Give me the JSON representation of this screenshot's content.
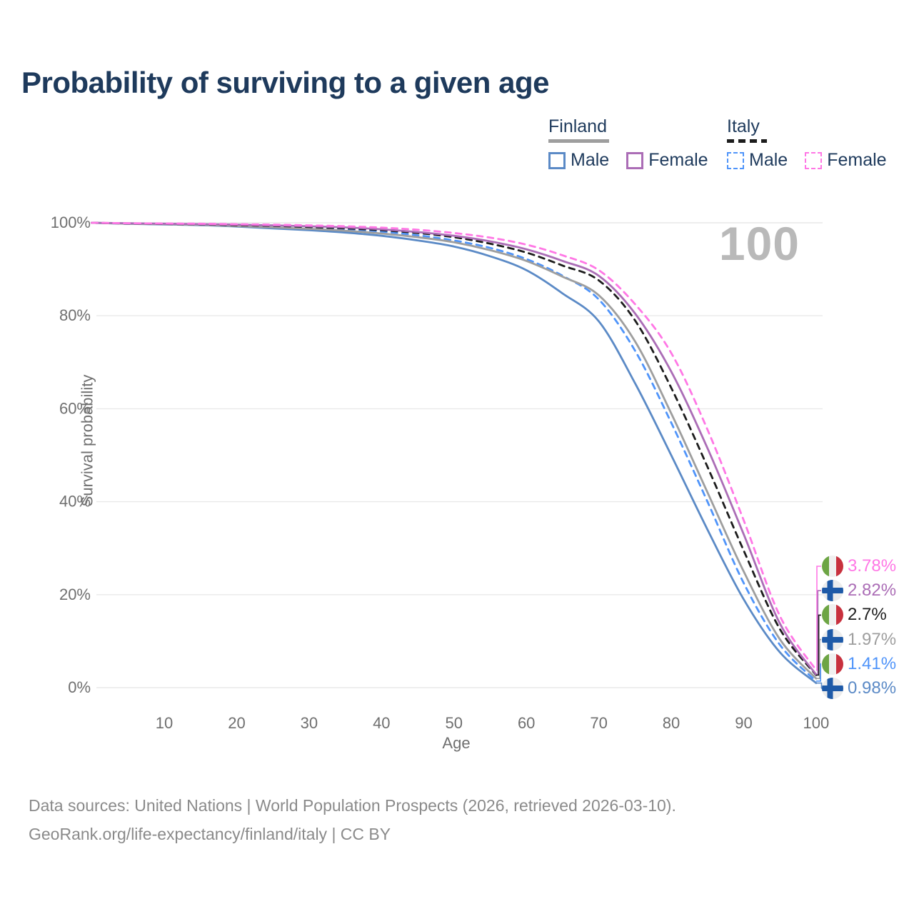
{
  "title": "Probability of surviving to a given age",
  "watermark": "100",
  "legend": {
    "finland": {
      "title": "Finland",
      "male": "Male",
      "female": "Female"
    },
    "italy": {
      "title": "Italy",
      "male": "Male",
      "female": "Female"
    }
  },
  "axes": {
    "y_label": "Survival probability",
    "x_label": "Age",
    "y_ticks": [
      {
        "value": 0,
        "label": "0%"
      },
      {
        "value": 20,
        "label": "20%"
      },
      {
        "value": 40,
        "label": "40%"
      },
      {
        "value": 60,
        "label": "60%"
      },
      {
        "value": 80,
        "label": "80%"
      },
      {
        "value": 100,
        "label": "100%"
      }
    ],
    "x_ticks": [
      10,
      20,
      30,
      40,
      50,
      60,
      70,
      80,
      90,
      100
    ]
  },
  "colors": {
    "title_text": "#1e3a5c",
    "axis_text": "#6f6f6f",
    "gridline": "#e9e9e9",
    "watermark": "#b9b9b9",
    "footer_text": "#8a8a8a",
    "finland_male": "#5b8ac6",
    "finland_female": "#ab6db6",
    "finland_total": "#9e9e9e",
    "italy_male": "#4f94fa",
    "italy_female": "#ff77e5",
    "italy_total": "#1c1c1c",
    "flag_italy_green": "#6da544",
    "flag_italy_red": "#c8313e",
    "flag_finland_blue": "#1e5aa8"
  },
  "chart_data": {
    "type": "line",
    "title": "Probability of surviving to a given age",
    "xlabel": "Age",
    "ylabel": "Survival probability",
    "xlim": [
      0,
      100
    ],
    "ylim": [
      0,
      100
    ],
    "grid": "horizontal",
    "legend_position": "top-right",
    "x": [
      0,
      5,
      10,
      15,
      20,
      25,
      30,
      35,
      40,
      45,
      50,
      55,
      60,
      65,
      70,
      75,
      80,
      85,
      90,
      95,
      100
    ],
    "series": [
      {
        "name": "Finland Male",
        "country": "finland",
        "sex": "male",
        "style": "solid",
        "color": "#5b8ac6",
        "end_label": "0.98%",
        "end_value": 0.98,
        "values": [
          100,
          99.8,
          99.65,
          99.5,
          99.2,
          98.8,
          98.4,
          97.9,
          97.2,
          96.2,
          94.9,
          92.8,
          89.8,
          84.8,
          78.8,
          65.5,
          50.0,
          34.0,
          19.0,
          7.6,
          0.98
        ]
      },
      {
        "name": "Italy Male",
        "country": "italy",
        "sex": "male",
        "style": "dashed",
        "color": "#4f94fa",
        "end_label": "1.41%",
        "end_value": 1.41,
        "values": [
          100,
          99.8,
          99.7,
          99.6,
          99.45,
          99.25,
          99.0,
          98.6,
          98.1,
          97.3,
          96.2,
          94.6,
          92.2,
          88.6,
          83.5,
          72.5,
          57.0,
          40.0,
          22.5,
          9.2,
          1.41
        ]
      },
      {
        "name": "Finland Total",
        "country": "finland",
        "sex": "total",
        "style": "solid",
        "color": "#9e9e9e",
        "end_label": "1.97%",
        "end_value": 1.97,
        "values": [
          100,
          99.8,
          99.7,
          99.55,
          99.3,
          99.0,
          98.7,
          98.3,
          97.7,
          96.9,
          95.8,
          94.1,
          91.8,
          88.4,
          84.4,
          74.5,
          59.0,
          42.0,
          25.0,
          10.4,
          1.97
        ]
      },
      {
        "name": "Italy Total",
        "country": "italy",
        "sex": "total",
        "style": "dashed",
        "color": "#1c1c1c",
        "end_label": "2.7%",
        "end_value": 2.7,
        "values": [
          100,
          99.85,
          99.75,
          99.65,
          99.5,
          99.35,
          99.1,
          98.8,
          98.4,
          97.8,
          96.9,
          95.5,
          93.6,
          90.8,
          87.6,
          79.0,
          64.5,
          47.5,
          29.5,
          12.6,
          2.7
        ]
      },
      {
        "name": "Finland Female",
        "country": "finland",
        "sex": "female",
        "style": "solid",
        "color": "#ab6db6",
        "end_label": "2.82%",
        "end_value": 2.82,
        "values": [
          100,
          99.9,
          99.8,
          99.7,
          99.6,
          99.45,
          99.25,
          99.0,
          98.6,
          98.0,
          97.2,
          96.0,
          94.3,
          91.8,
          88.6,
          80.5,
          68.0,
          51.5,
          33.0,
          13.8,
          2.82
        ]
      },
      {
        "name": "Italy Female",
        "country": "italy",
        "sex": "female",
        "style": "dashed",
        "color": "#ff77e5",
        "end_label": "3.78%",
        "end_value": 3.78,
        "values": [
          100,
          99.9,
          99.85,
          99.8,
          99.7,
          99.6,
          99.45,
          99.25,
          98.95,
          98.5,
          97.8,
          96.8,
          95.3,
          93.0,
          89.8,
          82.5,
          72.0,
          55.5,
          36.0,
          15.4,
          3.78
        ]
      }
    ],
    "annotations": [
      {
        "text": "3.78%",
        "series": "Italy Female",
        "flag": "italy"
      },
      {
        "text": "2.82%",
        "series": "Finland Female",
        "flag": "finland"
      },
      {
        "text": "2.7%",
        "series": "Italy Total",
        "flag": "italy"
      },
      {
        "text": "1.97%",
        "series": "Finland Total",
        "flag": "finland"
      },
      {
        "text": "1.41%",
        "series": "Italy Male",
        "flag": "italy"
      },
      {
        "text": "0.98%",
        "series": "Finland Male",
        "flag": "finland"
      }
    ]
  },
  "footer": {
    "line1": "Data sources: United Nations | World Population Prospects (2026, retrieved 2026-03-10).",
    "line2": "GeoRank.org/life-expectancy/finland/italy | CC BY"
  }
}
